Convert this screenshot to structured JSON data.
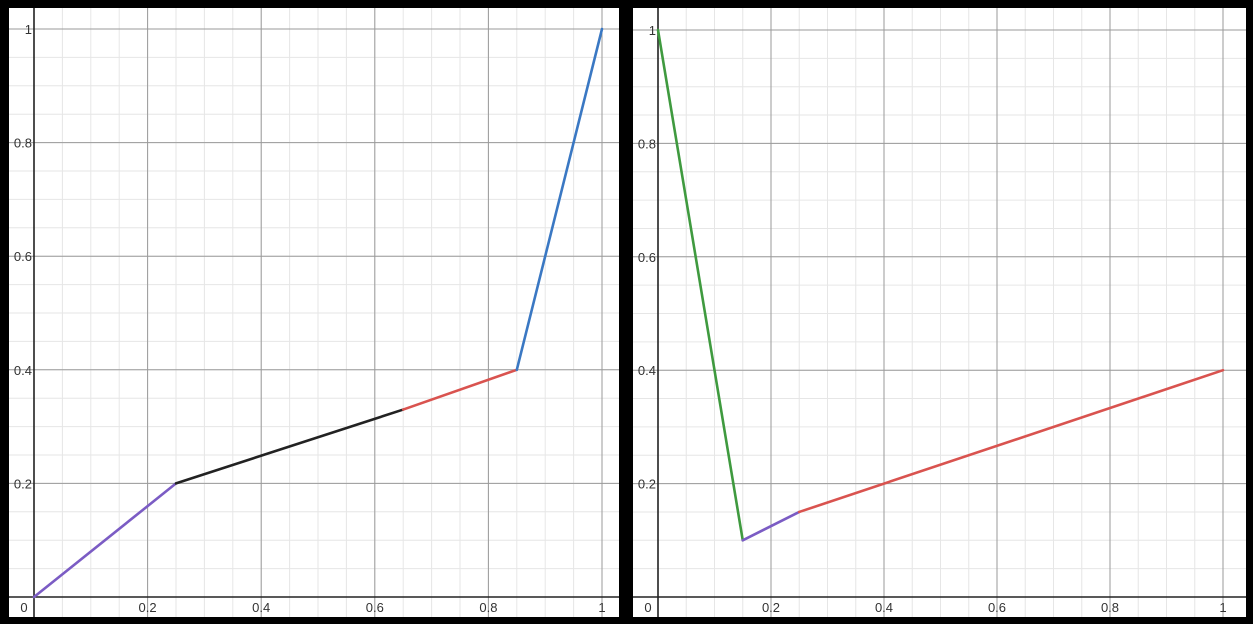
{
  "chart_data": [
    {
      "type": "line",
      "xlim": [
        0,
        1
      ],
      "ylim": [
        0,
        1
      ],
      "grid": true,
      "x_ticks": [
        "0",
        "0.2",
        "0.4",
        "0.6",
        "0.8",
        "1"
      ],
      "y_ticks": [
        "0.2",
        "0.4",
        "0.6",
        "0.8",
        "1"
      ],
      "series": [
        {
          "color": "#7b5cc4",
          "x": [
            0,
            0.25
          ],
          "y": [
            0,
            0.2
          ]
        },
        {
          "color": "#222222",
          "x": [
            0.25,
            0.65
          ],
          "y": [
            0.2,
            0.33
          ]
        },
        {
          "color": "#d9534f",
          "x": [
            0.65,
            0.85
          ],
          "y": [
            0.33,
            0.4
          ]
        },
        {
          "color": "#3a78c3",
          "x": [
            0.85,
            1
          ],
          "y": [
            0.4,
            1
          ]
        }
      ]
    },
    {
      "type": "line",
      "xlim": [
        0,
        1
      ],
      "ylim": [
        0,
        1
      ],
      "grid": true,
      "x_ticks": [
        "0",
        "0.2",
        "0.4",
        "0.6",
        "0.8",
        "1"
      ],
      "y_ticks": [
        "0.2",
        "0.4",
        "0.6",
        "0.8",
        "1"
      ],
      "series": [
        {
          "color": "#3f9a3f",
          "x": [
            0,
            0.15
          ],
          "y": [
            1,
            0.1
          ]
        },
        {
          "color": "#7b5cc4",
          "x": [
            0.15,
            0.25
          ],
          "y": [
            0.1,
            0.15
          ]
        },
        {
          "color": "#d9534f",
          "x": [
            0.25,
            1
          ],
          "y": [
            0.15,
            0.4
          ]
        }
      ]
    }
  ]
}
